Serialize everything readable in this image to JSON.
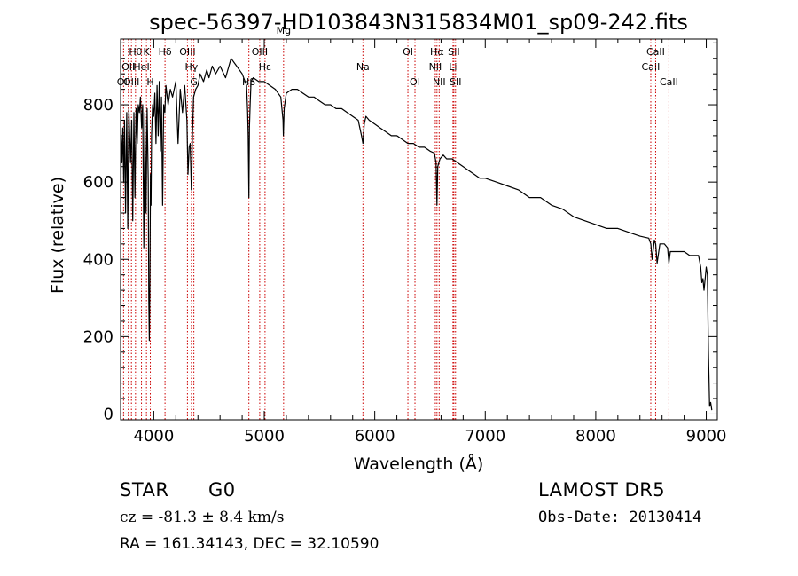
{
  "chart_data": {
    "type": "line",
    "title": "spec-56397-HD103843N315834M01_sp09-242.fits",
    "xlabel": "Wavelength (Å)",
    "ylabel": "Flux (relative)",
    "xlim": [
      3700,
      9100
    ],
    "ylim": [
      -15,
      970
    ],
    "xticks": [
      4000,
      5000,
      6000,
      7000,
      8000,
      9000
    ],
    "yticks": [
      0,
      200,
      400,
      600,
      800
    ],
    "grid": false,
    "line_color": "#000000",
    "marker_color": "#cc0000",
    "series": [
      {
        "x": [
          3700,
          3705,
          3712,
          3720,
          3728,
          3735,
          3745,
          3755,
          3765,
          3775,
          3790,
          3800,
          3810,
          3820,
          3830,
          3840,
          3850,
          3860,
          3870,
          3880,
          3890,
          3900,
          3910,
          3920,
          3930,
          3940,
          3950,
          3955,
          3960,
          3965,
          3970,
          3975,
          3980,
          3990,
          4000,
          4010,
          4020,
          4030,
          4040,
          4050,
          4060,
          4070,
          4080,
          4090,
          4100,
          4110,
          4130,
          4150,
          4170,
          4200,
          4220,
          4240,
          4260,
          4280,
          4300,
          4310,
          4320,
          4330,
          4340,
          4345,
          4350,
          4360,
          4380,
          4400,
          4420,
          4450,
          4480,
          4500,
          4530,
          4560,
          4600,
          4650,
          4700,
          4750,
          4800,
          4840,
          4850,
          4855,
          4861,
          4866,
          4872,
          4880,
          4900,
          4950,
          5000,
          5050,
          5100,
          5150,
          5170,
          5173,
          5180,
          5190,
          5200,
          5250,
          5300,
          5350,
          5400,
          5450,
          5500,
          5550,
          5600,
          5650,
          5700,
          5750,
          5800,
          5850,
          5880,
          5893,
          5905,
          5920,
          5950,
          6000,
          6050,
          6100,
          6150,
          6200,
          6250,
          6300,
          6350,
          6400,
          6450,
          6500,
          6540,
          6555,
          6563,
          6570,
          6590,
          6620,
          6650,
          6700,
          6750,
          6800,
          6850,
          6900,
          6950,
          7000,
          7100,
          7200,
          7300,
          7400,
          7500,
          7600,
          7700,
          7800,
          7900,
          8000,
          8100,
          8200,
          8300,
          8400,
          8480,
          8498,
          8510,
          8530,
          8542,
          8555,
          8580,
          8620,
          8650,
          8662,
          8675,
          8700,
          8750,
          8800,
          8850,
          8900,
          8930,
          8950,
          8960,
          8970,
          8980,
          8990,
          9000,
          9010,
          9020,
          9030,
          9040,
          9050
        ],
        "y": [
          300,
          720,
          650,
          740,
          600,
          760,
          520,
          780,
          480,
          790,
          650,
          760,
          500,
          780,
          560,
          790,
          700,
          800,
          780,
          820,
          740,
          800,
          430,
          780,
          520,
          790,
          600,
          300,
          190,
          330,
          620,
          540,
          720,
          800,
          770,
          830,
          700,
          850,
          720,
          860,
          680,
          820,
          540,
          800,
          780,
          850,
          800,
          840,
          820,
          860,
          700,
          840,
          780,
          850,
          760,
          620,
          690,
          700,
          580,
          630,
          720,
          820,
          840,
          850,
          880,
          860,
          890,
          870,
          900,
          880,
          900,
          870,
          920,
          900,
          880,
          850,
          780,
          720,
          560,
          740,
          800,
          860,
          870,
          860,
          860,
          850,
          840,
          820,
          760,
          720,
          790,
          810,
          830,
          840,
          840,
          830,
          820,
          820,
          810,
          800,
          800,
          790,
          790,
          780,
          770,
          760,
          720,
          700,
          750,
          770,
          760,
          750,
          740,
          730,
          720,
          720,
          710,
          700,
          700,
          690,
          690,
          680,
          675,
          650,
          540,
          640,
          660,
          670,
          660,
          660,
          650,
          640,
          630,
          620,
          610,
          610,
          600,
          590,
          580,
          560,
          560,
          540,
          530,
          510,
          500,
          490,
          480,
          480,
          470,
          460,
          455,
          440,
          400,
          450,
          440,
          390,
          440,
          440,
          430,
          390,
          420,
          420,
          420,
          420,
          410,
          410,
          410,
          380,
          340,
          350,
          320,
          350,
          380,
          360,
          160,
          20,
          30,
          10
        ]
      }
    ],
    "line_markers": [
      {
        "x": 3727,
        "label": "OII",
        "row": 3
      },
      {
        "x": 3770,
        "label": "OII",
        "row": 2
      },
      {
        "x": 3798,
        "label": "OIII",
        "row": 3
      },
      {
        "x": 3835,
        "label": "Hθ",
        "row": 1
      },
      {
        "x": 3889,
        "label": "HeI",
        "row": 2
      },
      {
        "x": 3934,
        "label": "K",
        "row": 1
      },
      {
        "x": 3969,
        "label": "H",
        "row": 3
      },
      {
        "x": 4102,
        "label": "Hδ",
        "row": 1
      },
      {
        "x": 4305,
        "label": "OIII",
        "row": 1
      },
      {
        "x": 4341,
        "label": "Hγ",
        "row": 2
      },
      {
        "x": 4363,
        "label": "G",
        "row": 3
      },
      {
        "x": 4861,
        "label": "Hβ",
        "row": 3
      },
      {
        "x": 4959,
        "label": "OIII",
        "row": 1
      },
      {
        "x": 5007,
        "label": "Hε",
        "row": 2
      },
      {
        "x": 5175,
        "label": "Mg",
        "row": 0
      },
      {
        "x": 5893,
        "label": "Na",
        "row": 2
      },
      {
        "x": 6300,
        "label": "OI",
        "row": 1
      },
      {
        "x": 6364,
        "label": "OI",
        "row": 3
      },
      {
        "x": 6548,
        "label": "NII",
        "row": 2
      },
      {
        "x": 6563,
        "label": "Hα",
        "row": 1
      },
      {
        "x": 6583,
        "label": "NII",
        "row": 3
      },
      {
        "x": 6708,
        "label": "Li",
        "row": 2
      },
      {
        "x": 6716,
        "label": "SII",
        "row": 1
      },
      {
        "x": 6731,
        "label": "SII",
        "row": 3
      },
      {
        "x": 8498,
        "label": "CaII",
        "row": 2
      },
      {
        "x": 8542,
        "label": "CaII",
        "row": 1
      },
      {
        "x": 8662,
        "label": "CaII",
        "row": 3
      }
    ]
  },
  "info": {
    "object_class": "STAR",
    "subclass": "G0",
    "survey": "LAMOST DR5",
    "redshift_text": "cz = -81.3 ± 8.4 km/s",
    "obs_date": "Obs-Date: 20130414",
    "coords": "RA = 161.34143, DEC =  32.10590"
  }
}
